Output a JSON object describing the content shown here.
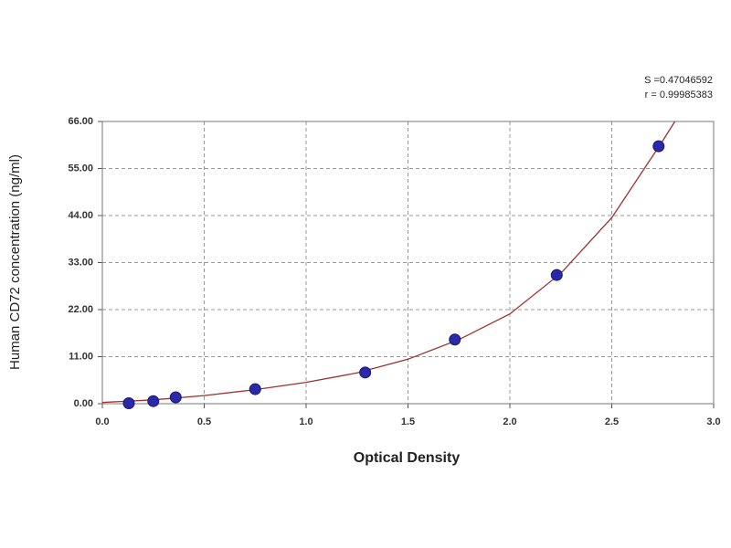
{
  "chart_data": {
    "type": "scatter",
    "x_label": "Optical Density",
    "y_label": "Human CD72  concentration (ng/ml)",
    "annotations": [
      "S =0.47046592",
      "r = 0.99985383"
    ],
    "xlim": [
      0,
      3
    ],
    "ylim": [
      0,
      66
    ],
    "xticks": [
      {
        "value": 0,
        "label": "0.0"
      },
      0.5,
      {
        "value": 1,
        "label": "1.0"
      },
      1.5,
      {
        "value": 2,
        "label": "2.0"
      },
      2.5,
      {
        "value": 3,
        "label": "3.0"
      }
    ],
    "yticks": [
      {
        "value": 0,
        "label": "0.00"
      },
      {
        "value": 11,
        "label": "11.00"
      },
      {
        "value": 22,
        "label": "22.00"
      },
      {
        "value": 33,
        "label": "33.00"
      },
      {
        "value": 44,
        "label": "44.00"
      },
      {
        "value": 55,
        "label": "55.00"
      },
      {
        "value": 66,
        "label": "66.00"
      }
    ],
    "grid": true,
    "series": [
      {
        "type": "scatter",
        "color": "#2a2aa8",
        "x": [
          0.13,
          0.25,
          0.36,
          0.75,
          1.29,
          1.73,
          2.23,
          2.73
        ],
        "values": [
          0.1,
          0.6,
          1.5,
          3.4,
          7.3,
          15.0,
          30.1,
          60.2
        ]
      },
      {
        "type": "line",
        "color": "#a03030",
        "x": [
          0,
          0.25,
          0.5,
          0.75,
          1.0,
          1.25,
          1.5,
          1.75,
          2.0,
          2.25,
          2.5,
          2.75,
          2.81
        ],
        "values": [
          0.3,
          0.9,
          1.9,
          3.3,
          5.0,
          7.2,
          10.4,
          15.0,
          21.0,
          30.5,
          43.5,
          61.5,
          66
        ]
      }
    ]
  }
}
